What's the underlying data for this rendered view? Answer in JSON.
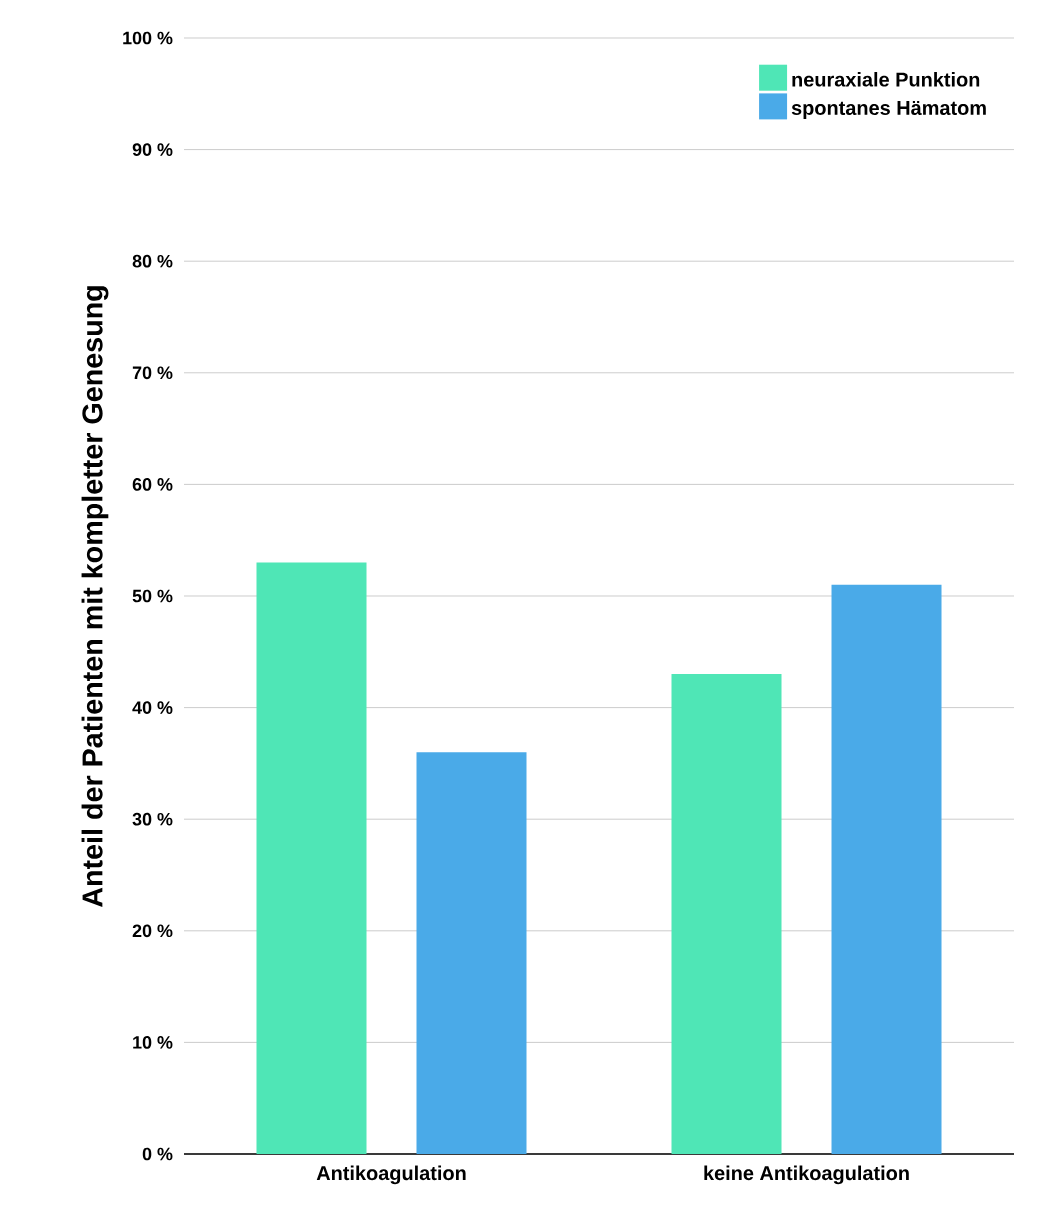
{
  "chart_data": {
    "type": "bar",
    "ylabel": "Anteil der Patienten mit kompletter Genesung",
    "categories": [
      "Antikoagulation",
      "keine Antikoagulation"
    ],
    "series": [
      {
        "name": "neuraxiale Punktion",
        "color": "#4fe6b6",
        "values": [
          53,
          43
        ]
      },
      {
        "name": "spontanes Hämatom",
        "color": "#4aaae8",
        "values": [
          36,
          51
        ]
      }
    ],
    "ylim": [
      0,
      100
    ],
    "yticks": [
      {
        "value": 0,
        "label": "0 %"
      },
      {
        "value": 10,
        "label": "10 %"
      },
      {
        "value": 20,
        "label": "20 %"
      },
      {
        "value": 30,
        "label": "30 %"
      },
      {
        "value": 40,
        "label": "40 %"
      },
      {
        "value": 50,
        "label": "50 %"
      },
      {
        "value": 60,
        "label": "60 %"
      },
      {
        "value": 70,
        "label": "70 %"
      },
      {
        "value": 80,
        "label": "80 %"
      },
      {
        "value": 90,
        "label": "90 %"
      },
      {
        "value": 100,
        "label": "100 %"
      }
    ],
    "grid": "y",
    "legend": "top right"
  }
}
